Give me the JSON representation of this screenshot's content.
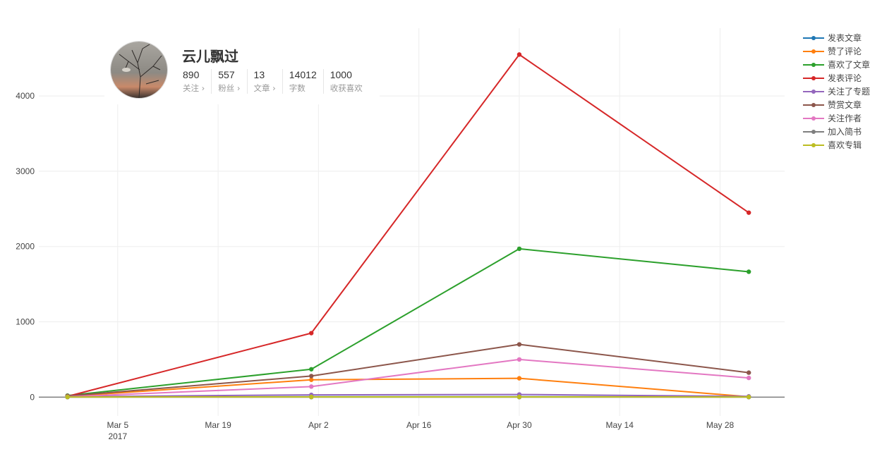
{
  "profile": {
    "name": "云儿飘过",
    "stats": [
      {
        "value": "890",
        "label": "关注 ›"
      },
      {
        "value": "557",
        "label": "粉丝 ›"
      },
      {
        "value": "13",
        "label": "文章 ›"
      },
      {
        "value": "14012",
        "label": "字数"
      },
      {
        "value": "1000",
        "label": "收获喜欢"
      }
    ]
  },
  "chart_data": {
    "type": "line",
    "title": "",
    "xlabel": "",
    "ylabel": "",
    "x": [
      "2017-02-26",
      "2017-04-01",
      "2017-04-30",
      "2017-06-01"
    ],
    "xlim": [
      "2017-02-22",
      "2017-06-06"
    ],
    "ylim": [
      -250,
      4900
    ],
    "x_ticks": [
      {
        "date": "2017-03-05",
        "label": "Mar 5",
        "sublabel": "2017"
      },
      {
        "date": "2017-03-19",
        "label": "Mar 19"
      },
      {
        "date": "2017-04-02",
        "label": "Apr 2"
      },
      {
        "date": "2017-04-16",
        "label": "Apr 16"
      },
      {
        "date": "2017-04-30",
        "label": "Apr 30"
      },
      {
        "date": "2017-05-14",
        "label": "May 14"
      },
      {
        "date": "2017-05-28",
        "label": "May 28"
      }
    ],
    "y_ticks": [
      0,
      1000,
      2000,
      3000,
      4000
    ],
    "grid": true,
    "legend_position": "top-right",
    "series": [
      {
        "name": "发表文章",
        "color": "#1f77b4",
        "values": [
          2,
          5,
          5,
          3
        ]
      },
      {
        "name": "赞了评论",
        "color": "#ff7f0e",
        "values": [
          10,
          230,
          250,
          5
        ]
      },
      {
        "name": "喜欢了文章",
        "color": "#2ca02c",
        "values": [
          20,
          370,
          1970,
          1665
        ]
      },
      {
        "name": "发表评论",
        "color": "#d62728",
        "values": [
          10,
          850,
          4550,
          2450
        ]
      },
      {
        "name": "关注了专题",
        "color": "#9467bd",
        "values": [
          5,
          30,
          35,
          10
        ]
      },
      {
        "name": "赞赏文章",
        "color": "#8c564b",
        "values": [
          15,
          280,
          700,
          325
        ]
      },
      {
        "name": "关注作者",
        "color": "#e377c2",
        "values": [
          5,
          140,
          500,
          255
        ]
      },
      {
        "name": "加入简书",
        "color": "#7f7f7f",
        "values": [
          0,
          0,
          0,
          0
        ]
      },
      {
        "name": "喜欢专辑",
        "color": "#bcbd22",
        "values": [
          2,
          3,
          3,
          2
        ]
      }
    ]
  }
}
